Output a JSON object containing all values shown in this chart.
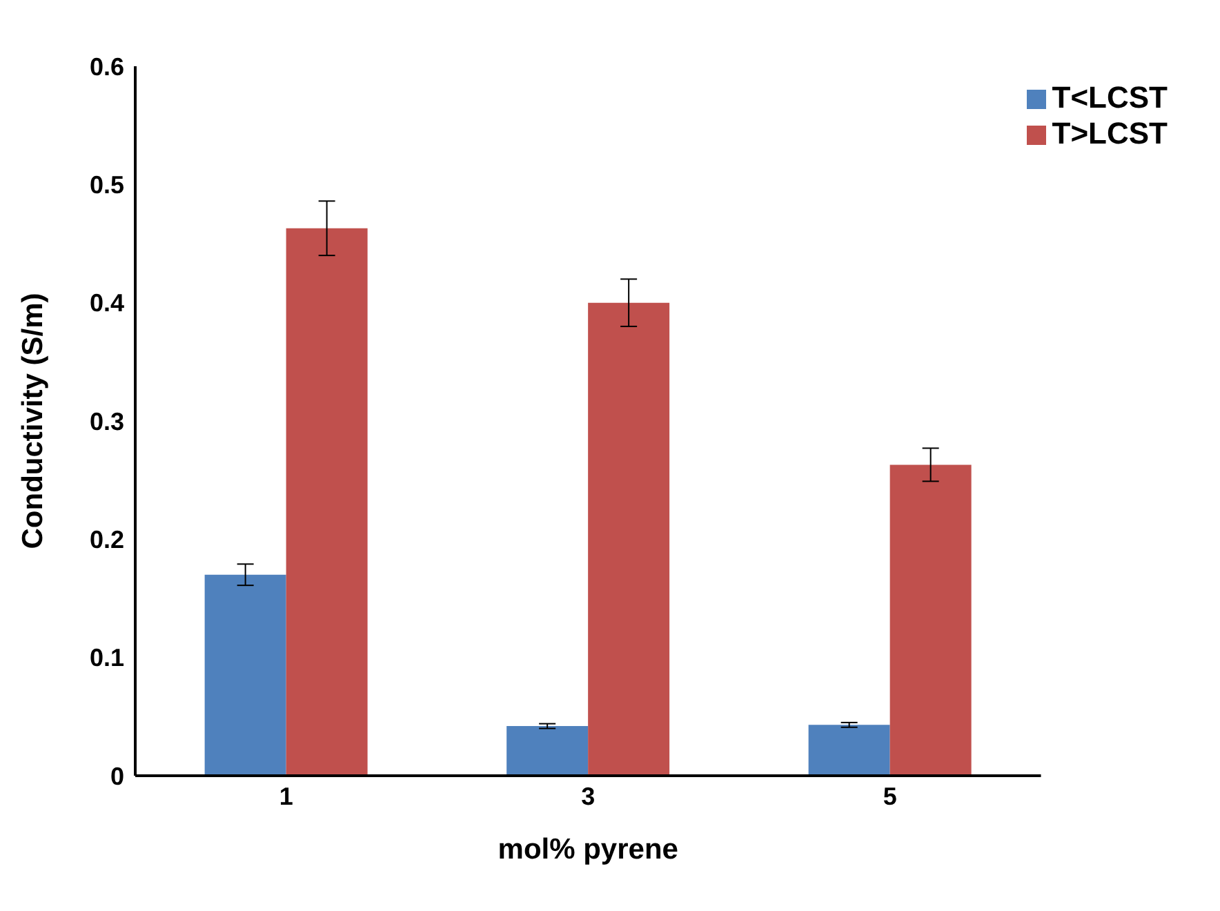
{
  "chart_data": {
    "type": "bar",
    "xlabel": "mol% pyrene",
    "ylabel": "Conductivity (S/m)",
    "categories": [
      "1",
      "3",
      "5"
    ],
    "series": [
      {
        "name": "T<LCST",
        "color": "#4f81bd",
        "values": [
          0.17,
          0.042,
          0.043
        ],
        "errors": [
          0.009,
          0.002,
          0.002
        ]
      },
      {
        "name": "T>LCST",
        "color": "#c0504d",
        "values": [
          0.463,
          0.4,
          0.263
        ],
        "errors": [
          0.023,
          0.02,
          0.014
        ]
      }
    ],
    "ylim": [
      0,
      0.6
    ],
    "yticks": [
      0,
      0.1,
      0.2,
      0.3,
      0.4,
      0.5,
      0.6
    ],
    "grid": false,
    "legend": "top right"
  }
}
